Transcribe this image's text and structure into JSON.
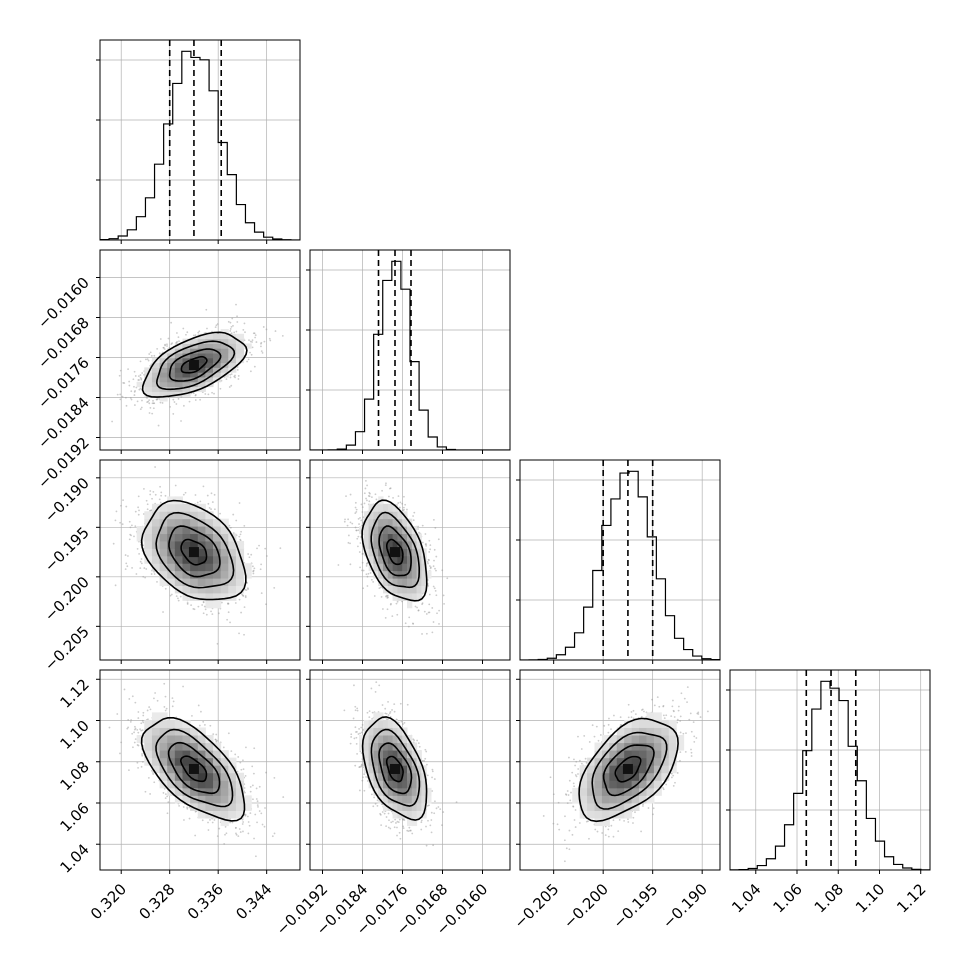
{
  "chart_data": {
    "type": "corner",
    "grid": true,
    "parameters": [
      {
        "median": 0.332,
        "q16": 0.328,
        "q84": 0.3365,
        "sigma": 0.0042,
        "range": [
          0.3165,
          0.3495
        ],
        "ticks": [
          0.32,
          0.328,
          0.336,
          0.344
        ],
        "tick_labels": [
          "0.320",
          "0.328",
          "0.336",
          "0.344"
        ]
      },
      {
        "median": -0.01775,
        "q16": -0.01808,
        "q84": -0.01743,
        "sigma": 0.00032,
        "range": [
          -0.01945,
          -0.01545
        ],
        "ticks": [
          -0.0192,
          -0.0184,
          -0.0176,
          -0.0168,
          -0.016
        ],
        "tick_labels": [
          "−0.0192",
          "−0.0184",
          "−0.0176",
          "−0.0168",
          "−0.0160"
        ]
      },
      {
        "median": -0.1975,
        "q16": -0.2,
        "q84": -0.195,
        "sigma": 0.0025,
        "range": [
          -0.2084,
          -0.1882
        ],
        "ticks": [
          -0.205,
          -0.2,
          -0.195,
          -0.19
        ],
        "tick_labels": [
          "−0.205",
          "−0.200",
          "−0.195",
          "−0.190"
        ]
      },
      {
        "median": 1.0765,
        "q16": 1.0645,
        "q84": 1.0885,
        "sigma": 0.0122,
        "range": [
          1.0275,
          1.1245
        ],
        "ticks": [
          1.04,
          1.06,
          1.08,
          1.1,
          1.12
        ],
        "tick_labels": [
          "1.04",
          "1.06",
          "1.08",
          "1.10",
          "1.12"
        ]
      }
    ],
    "correlations": [
      {
        "i": 1,
        "j": 0,
        "rho": 0.55
      },
      {
        "i": 2,
        "j": 0,
        "rho": -0.35
      },
      {
        "i": 2,
        "j": 1,
        "rho": -0.42
      },
      {
        "i": 3,
        "j": 0,
        "rho": -0.6
      },
      {
        "i": 3,
        "j": 1,
        "rho": -0.45
      },
      {
        "i": 3,
        "j": 2,
        "rho": 0.5
      }
    ],
    "contour_levels_sigma": [
      0.5,
      1.0,
      1.5,
      2.0
    ],
    "quantiles": [
      0.16,
      0.5,
      0.84
    ]
  }
}
